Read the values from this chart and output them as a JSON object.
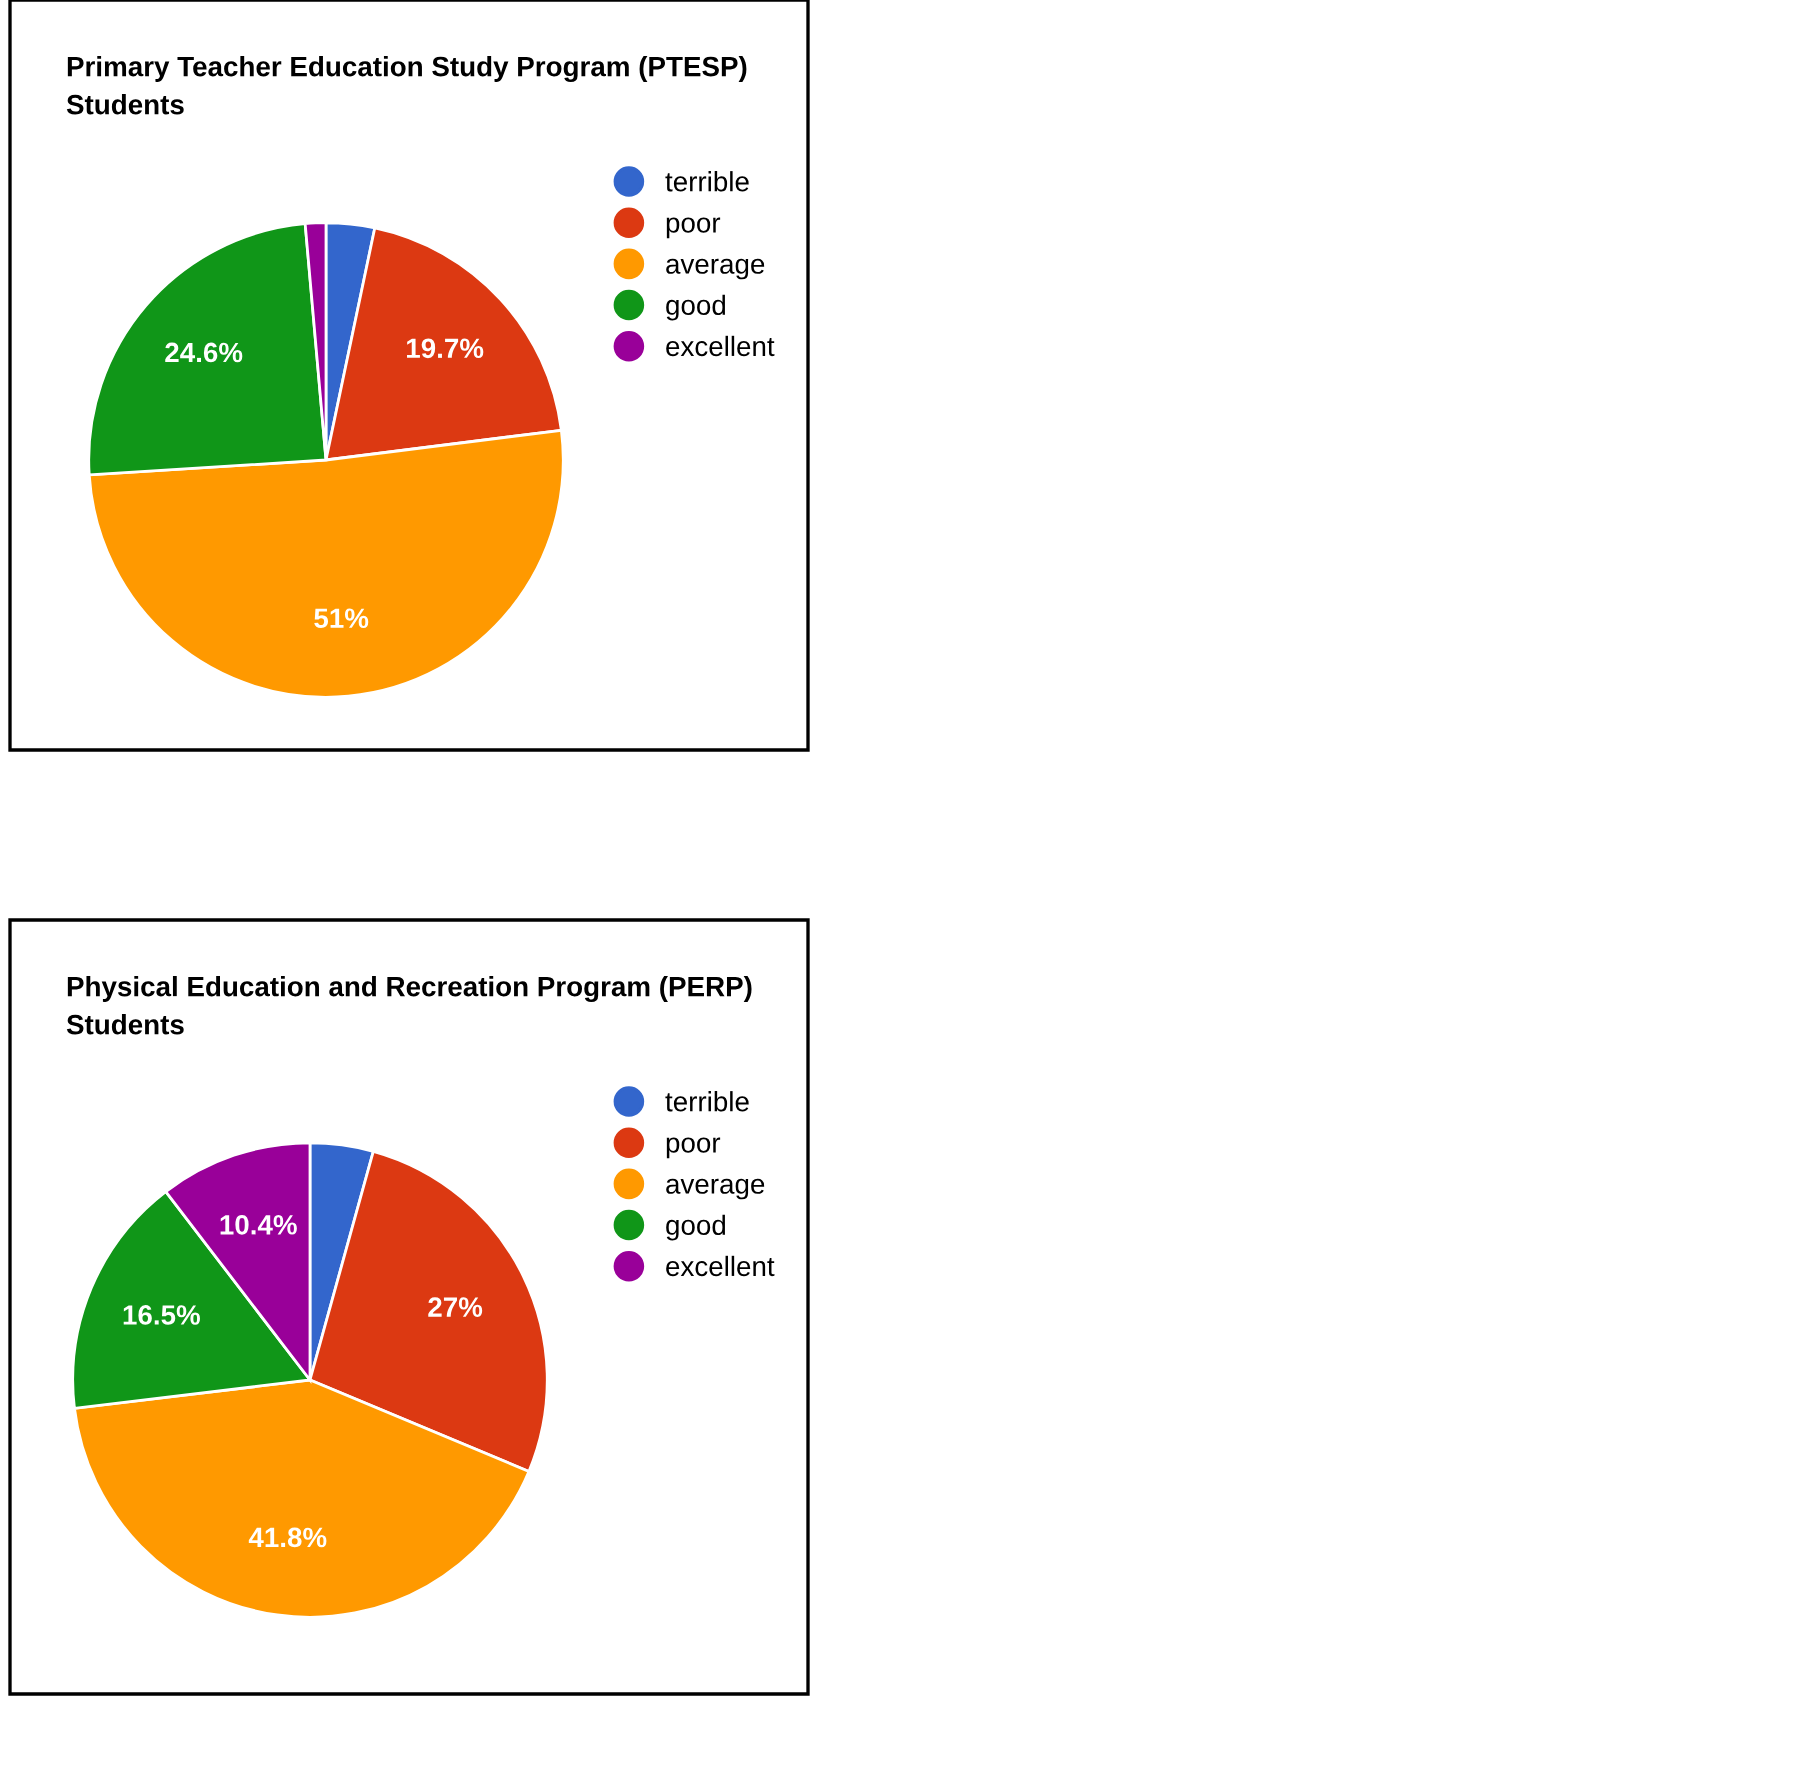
{
  "chart_data": [
    {
      "type": "pie",
      "title": "Primary Teacher Education Study Program (PTESP)\nStudents",
      "categories": [
        "terrible",
        "poor",
        "average",
        "good",
        "excellent"
      ],
      "values": [
        3.3,
        19.7,
        51,
        24.6,
        1.4
      ],
      "colors": [
        "#3366cc",
        "#dc3912",
        "#ff9900",
        "#109618",
        "#990099"
      ],
      "value_labels": [
        null,
        "19.7%",
        "51%",
        "24.6%",
        null
      ],
      "legend": "right"
    },
    {
      "type": "pie",
      "title": "Physical Education and Recreation Program (PERP)\nStudents",
      "categories": [
        "terrible",
        "poor",
        "average",
        "good",
        "excellent"
      ],
      "values": [
        4.3,
        27,
        41.8,
        16.5,
        10.4
      ],
      "colors": [
        "#3366cc",
        "#dc3912",
        "#ff9900",
        "#109618",
        "#990099"
      ],
      "value_labels": [
        null,
        "27%",
        "41.8%",
        "16.5%",
        "10.4%"
      ],
      "legend": "right"
    }
  ]
}
